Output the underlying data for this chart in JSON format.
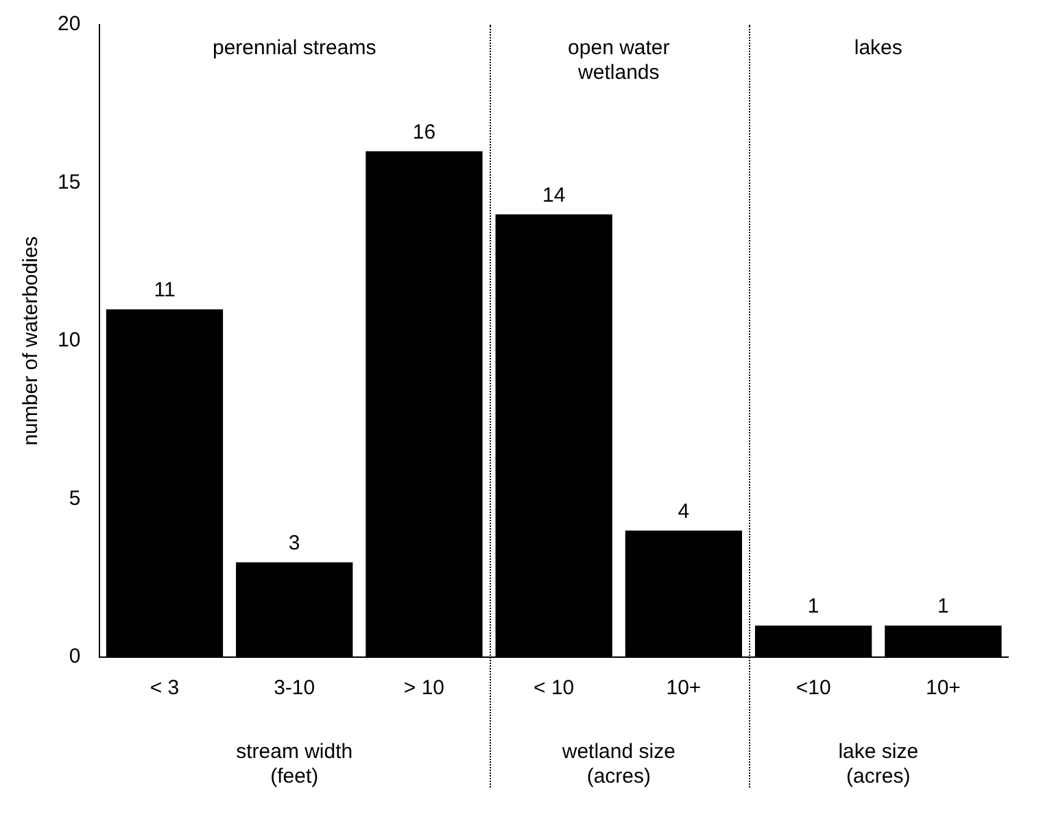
{
  "chart_data": {
    "type": "bar",
    "ylabel": "number of waterbodies",
    "categories": [
      "< 3",
      "3-10",
      "> 10",
      "< 10",
      "10+",
      "<10",
      "10+"
    ],
    "values": [
      11,
      3,
      16,
      14,
      4,
      1,
      1
    ],
    "color": "#000000",
    "ylim": [
      0,
      20
    ],
    "yticks": [
      0,
      5,
      10,
      15,
      20
    ],
    "grid": false,
    "legend": false,
    "data_labels": true,
    "annotations": [
      "perennial streams",
      "open water\nwetlands",
      "lakes",
      "stream width\n(feet)",
      "wetland size\n(acres)",
      "lake size\n(acres)"
    ]
  }
}
